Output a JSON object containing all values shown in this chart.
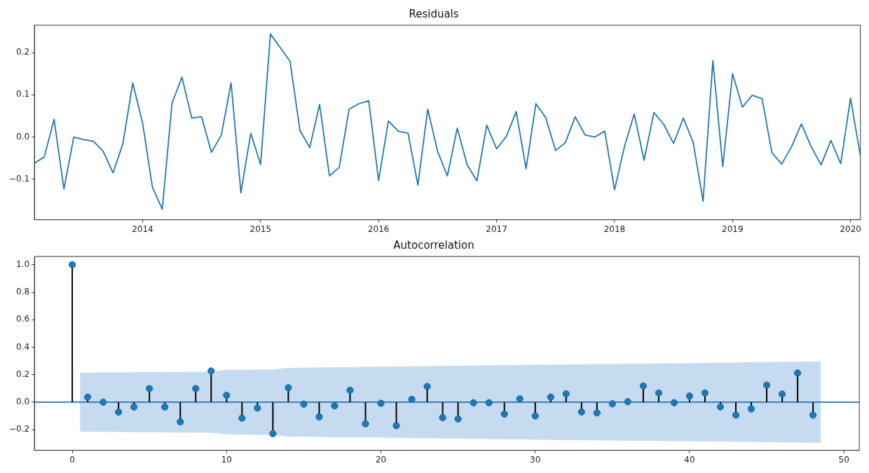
{
  "chart_data": [
    {
      "type": "line",
      "title": "Residuals",
      "color": "#1f77b4",
      "x": [
        "2013-02",
        "2013-03",
        "2013-04",
        "2013-05",
        "2013-06",
        "2013-07",
        "2013-08",
        "2013-09",
        "2013-10",
        "2013-11",
        "2013-12",
        "2014-01",
        "2014-02",
        "2014-03",
        "2014-04",
        "2014-05",
        "2014-06",
        "2014-07",
        "2014-08",
        "2014-09",
        "2014-10",
        "2014-11",
        "2014-12",
        "2015-01",
        "2015-02",
        "2015-03",
        "2015-04",
        "2015-05",
        "2015-06",
        "2015-07",
        "2015-08",
        "2015-09",
        "2015-10",
        "2015-11",
        "2015-12",
        "2016-01",
        "2016-02",
        "2016-03",
        "2016-04",
        "2016-05",
        "2016-06",
        "2016-07",
        "2016-08",
        "2016-09",
        "2016-10",
        "2016-11",
        "2016-12",
        "2017-01",
        "2017-02",
        "2017-03",
        "2017-04",
        "2017-05",
        "2017-06",
        "2017-07",
        "2017-08",
        "2017-09",
        "2017-10",
        "2017-11",
        "2017-12",
        "2018-01",
        "2018-02",
        "2018-03",
        "2018-04",
        "2018-05",
        "2018-06",
        "2018-07",
        "2018-08",
        "2018-09",
        "2018-10",
        "2018-11",
        "2018-12",
        "2019-01",
        "2019-02",
        "2019-03",
        "2019-04",
        "2019-05",
        "2019-06",
        "2019-07",
        "2019-08",
        "2019-09",
        "2019-10",
        "2019-11",
        "2019-12",
        "2020-01",
        "2020-02"
      ],
      "values": [
        -0.062,
        -0.047,
        0.042,
        -0.123,
        0.0,
        -0.006,
        -0.01,
        -0.034,
        -0.085,
        -0.015,
        0.128,
        0.033,
        -0.119,
        -0.171,
        0.081,
        0.142,
        0.045,
        0.048,
        -0.036,
        0.004,
        0.128,
        -0.132,
        0.009,
        -0.065,
        0.244,
        0.212,
        0.179,
        0.016,
        -0.025,
        0.077,
        -0.092,
        -0.072,
        0.066,
        0.079,
        0.086,
        -0.103,
        0.038,
        0.014,
        0.009,
        -0.114,
        0.066,
        -0.034,
        -0.092,
        0.021,
        -0.065,
        -0.104,
        0.028,
        -0.028,
        0.002,
        0.06,
        -0.075,
        0.079,
        0.046,
        -0.032,
        -0.013,
        0.048,
        0.005,
        0.0,
        0.014,
        -0.125,
        -0.023,
        0.055,
        -0.055,
        0.058,
        0.03,
        -0.015,
        0.045,
        -0.013,
        -0.152,
        0.181,
        -0.07,
        0.15,
        0.071,
        0.099,
        0.091,
        -0.037,
        -0.064,
        -0.023,
        0.031,
        -0.023,
        -0.066,
        -0.008,
        -0.063,
        0.092,
        -0.045
      ],
      "xlim": [
        "2013-02",
        "2020-02"
      ],
      "xticks": [
        "2014",
        "2015",
        "2016",
        "2017",
        "2018",
        "2019",
        "2020"
      ],
      "ylim": [
        -0.196,
        0.265
      ],
      "yticks": [
        {
          "value": -0.1,
          "label": "−0.1"
        },
        {
          "value": 0,
          "label": "0.0"
        },
        {
          "value": 0.1,
          "label": "0.1"
        },
        {
          "value": 0.2,
          "label": "0.2"
        }
      ]
    },
    {
      "type": "lollipop",
      "title": "Autocorrelation",
      "marker": "circle",
      "series": [
        {
          "color": "#1f77b4",
          "x": [
            0,
            1,
            2,
            3,
            4,
            5,
            6,
            7,
            8,
            9,
            10,
            11,
            12,
            13,
            14,
            15,
            16,
            17,
            18,
            19,
            20,
            21,
            22,
            23,
            24,
            25,
            26,
            27,
            28,
            29,
            30,
            31,
            32,
            33,
            34,
            35,
            36,
            37,
            38,
            39,
            40,
            41,
            42,
            43,
            44,
            45,
            46,
            47,
            48
          ],
          "values": [
            1.0,
            0.037,
            0.0,
            -0.072,
            -0.035,
            0.099,
            -0.035,
            -0.143,
            0.099,
            0.227,
            0.05,
            -0.116,
            -0.043,
            -0.229,
            0.105,
            -0.014,
            -0.107,
            -0.027,
            0.087,
            -0.157,
            -0.008,
            -0.171,
            0.021,
            0.114,
            -0.112,
            -0.122,
            -0.004,
            -0.004,
            -0.086,
            0.024,
            -0.1,
            0.037,
            0.061,
            -0.071,
            -0.078,
            -0.012,
            0.004,
            0.118,
            0.067,
            -0.004,
            0.045,
            0.067,
            -0.035,
            -0.094,
            -0.049,
            0.124,
            0.059,
            0.212,
            -0.094
          ]
        },
        {
          "type": "line",
          "color": "#c6dbef",
          "x": [
            0.5,
            9,
            10,
            13,
            14,
            20,
            30,
            40,
            48.5
          ],
          "values": [
            null,
            null,
            null,
            null,
            null,
            null,
            null,
            null,
            null
          ],
          "upper": [
            0.215,
            0.222,
            0.235,
            0.238,
            0.25,
            0.258,
            0.273,
            0.284,
            0.296
          ],
          "lower": [
            -0.215,
            -0.222,
            -0.235,
            -0.238,
            -0.25,
            -0.258,
            -0.273,
            -0.284,
            -0.296
          ]
        }
      ],
      "ref_lines": [
        {
          "axis": "y",
          "value": 0,
          "color": "#1f77b4"
        }
      ],
      "xlim": [
        -2.45,
        51.0
      ],
      "xticks": [
        0,
        10,
        20,
        30,
        40,
        50
      ],
      "ylim": [
        -0.35,
        1.06
      ],
      "yticks": [
        {
          "value": -0.2,
          "label": "−0.2"
        },
        {
          "value": 0,
          "label": "0.0"
        },
        {
          "value": 0.2,
          "label": "0.2"
        },
        {
          "value": 0.4,
          "label": "0.4"
        },
        {
          "value": 0.6,
          "label": "0.6"
        },
        {
          "value": 0.8,
          "label": "0.8"
        },
        {
          "value": 1.0,
          "label": "1.0"
        }
      ]
    }
  ]
}
